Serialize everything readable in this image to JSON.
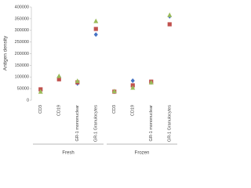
{
  "chart_data": {
    "type": "scatter",
    "y_label": "Antigen density",
    "categories": [
      "CD3",
      "CD19",
      "GR-1 mononuclear",
      "GR-1 Granulocytes",
      "CD3",
      "CD19",
      "GR-1 mononuclear",
      "GR-1 Granulocytes"
    ],
    "groups": [
      "Fresh",
      "Frozen"
    ],
    "series": [
      {
        "color": "#4472c4",
        "marker": "diamond",
        "values": [
          42000,
          100000,
          72000,
          282000,
          37000,
          84000,
          77000,
          360000
        ]
      },
      {
        "color": "#c0504d",
        "marker": "square",
        "values": [
          47000,
          90000,
          77000,
          306000,
          37000,
          64000,
          80000,
          326000
        ]
      },
      {
        "color": "#9bbb59",
        "marker": "triangle",
        "values": [
          37000,
          104000,
          83000,
          340000,
          39000,
          54000,
          77000,
          366000
        ]
      }
    ],
    "ylim": [
      0,
      400000
    ],
    "yticks": [
      0,
      50000,
      100000,
      150000,
      200000,
      250000,
      300000,
      350000,
      400000
    ],
    "grid": false
  }
}
